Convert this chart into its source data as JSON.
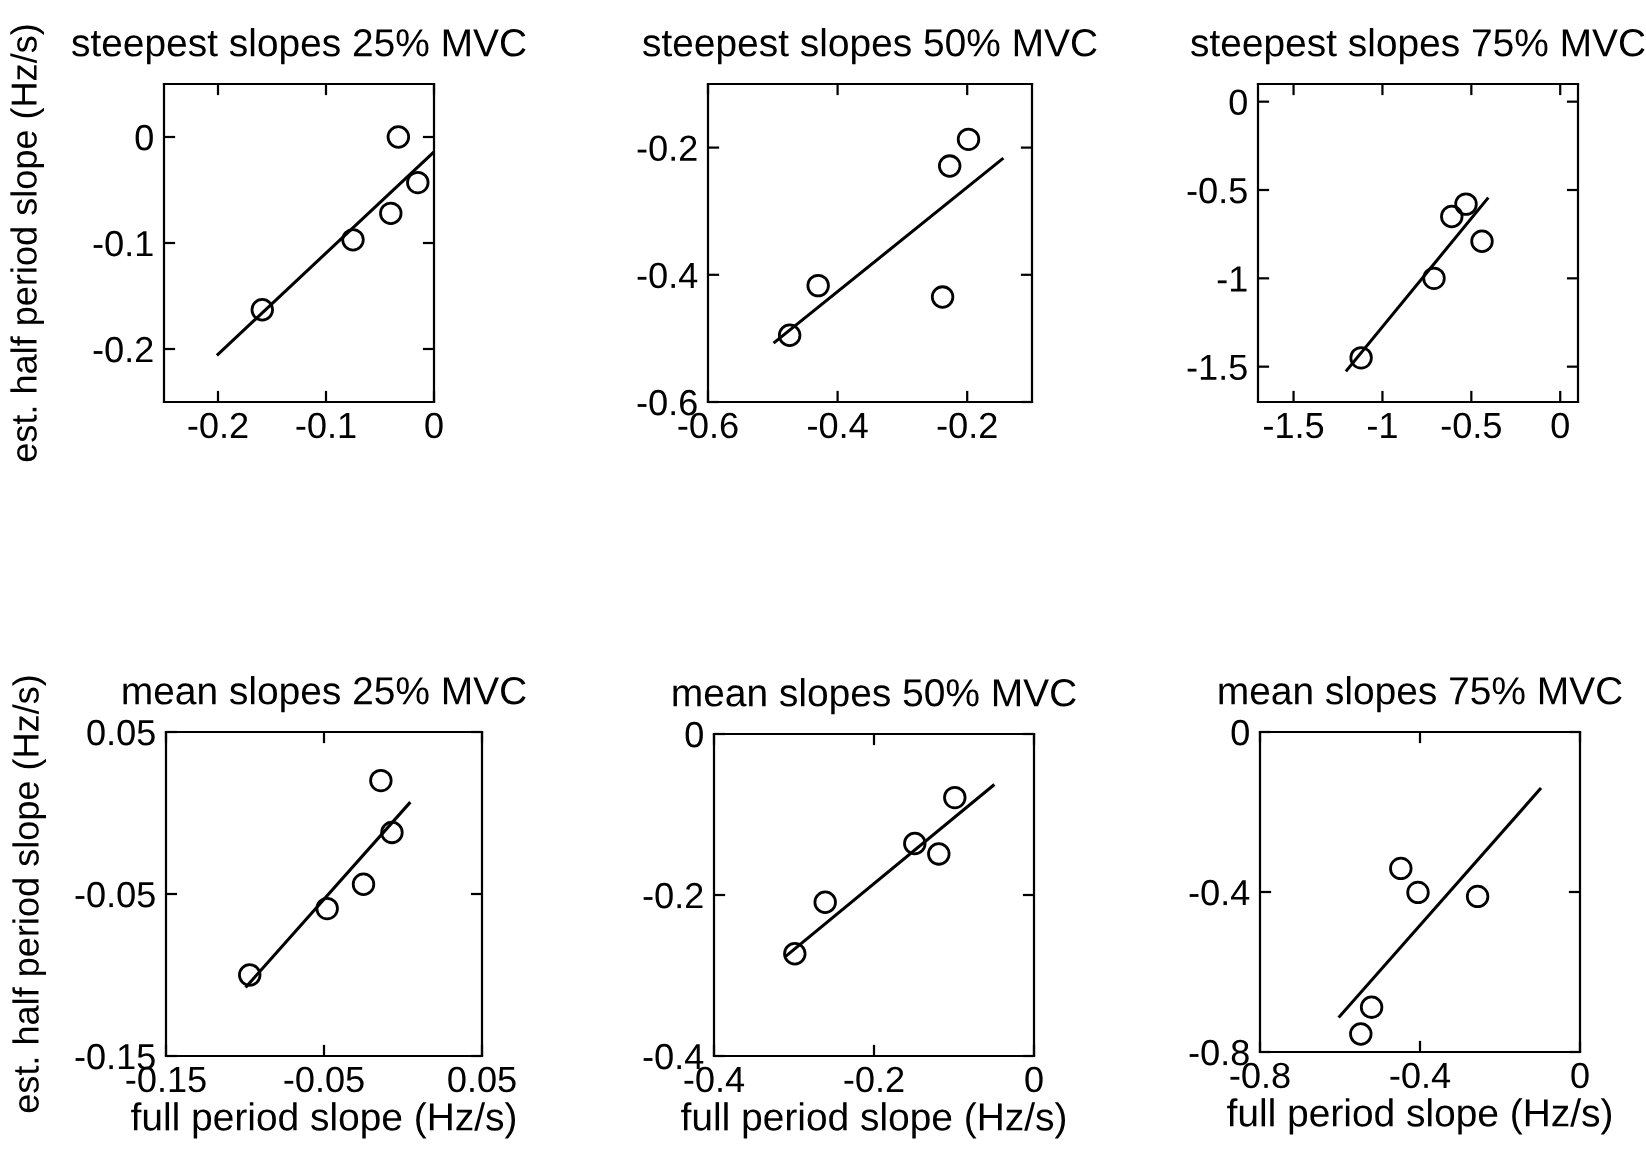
{
  "chart_data": [
    {
      "type": "scatter",
      "title": "steepest slopes 25% MVC",
      "ylabel": "est. half period slope (Hz/s)",
      "xlim": [
        -0.25,
        0
      ],
      "ylim": [
        -0.25,
        0.05
      ],
      "xticks": [
        -0.2,
        -0.1,
        0
      ],
      "yticks": [
        -0.2,
        -0.1,
        0
      ],
      "grid": false,
      "tick_labels": true,
      "series": [
        {
          "marker": "circle",
          "color": "#000000",
          "x": [
            -0.159,
            -0.075,
            -0.04,
            -0.033,
            -0.015
          ],
          "values": [
            -0.163,
            -0.097,
            -0.072,
            0.0,
            -0.043
          ]
        },
        {
          "type": "line",
          "color": "#000000",
          "line_style": "solid",
          "x": [
            -0.2,
            0.0
          ],
          "values": [
            -0.205,
            -0.014
          ]
        }
      ]
    },
    {
      "type": "scatter",
      "title": "steepest slopes 50% MVC",
      "xlim": [
        -0.6,
        -0.1
      ],
      "ylim": [
        -0.6,
        -0.1
      ],
      "xticks": [
        -0.6,
        -0.4,
        -0.2
      ],
      "yticks": [
        -0.6,
        -0.4,
        -0.2
      ],
      "grid": false,
      "series": [
        {
          "marker": "circle",
          "color": "#000000",
          "x": [
            -0.474,
            -0.43,
            -0.227,
            -0.198,
            -0.238
          ],
          "values": [
            -0.495,
            -0.417,
            -0.229,
            -0.187,
            -0.435
          ]
        },
        {
          "type": "line",
          "color": "#000000",
          "line_style": "solid",
          "x": [
            -0.497,
            -0.146
          ],
          "values": [
            -0.506,
            -0.218
          ]
        }
      ]
    },
    {
      "type": "scatter",
      "title": "steepest slopes 75% MVC",
      "xlim": [
        -1.7,
        0.1
      ],
      "ylim": [
        -1.7,
        0.1
      ],
      "xticks": [
        -1.5,
        -1,
        -0.5,
        0
      ],
      "yticks": [
        -1.5,
        -1,
        -0.5,
        0
      ],
      "grid": false,
      "series": [
        {
          "marker": "circle",
          "color": "#000000",
          "x": [
            -1.12,
            -0.71,
            -0.61,
            -0.53,
            -0.44
          ],
          "values": [
            -1.45,
            -1.0,
            -0.65,
            -0.58,
            -0.79
          ]
        },
        {
          "type": "line",
          "color": "#000000",
          "line_style": "solid",
          "x": [
            -1.2,
            -0.41
          ],
          "values": [
            -1.52,
            -0.55
          ]
        }
      ]
    },
    {
      "type": "scatter",
      "title": "mean slopes 25% MVC",
      "xlabel": "full period slope (Hz/s)",
      "ylabel": "est. half period slope (Hz/s)",
      "xlim": [
        -0.15,
        0.05
      ],
      "ylim": [
        -0.15,
        0.05
      ],
      "xticks": [
        -0.15,
        -0.05,
        0.05
      ],
      "yticks": [
        -0.15,
        -0.05,
        0.05
      ],
      "grid": false,
      "series": [
        {
          "marker": "circle",
          "color": "#000000",
          "x": [
            -0.097,
            -0.048,
            -0.025,
            -0.014,
            -0.007
          ],
          "values": [
            -0.1,
            -0.059,
            -0.044,
            0.02,
            -0.012
          ]
        },
        {
          "type": "line",
          "color": "#000000",
          "line_style": "solid",
          "x": [
            -0.099,
            0.004
          ],
          "values": [
            -0.107,
            0.006
          ]
        }
      ]
    },
    {
      "type": "scatter",
      "title": "mean slopes 50% MVC",
      "xlabel": "full period slope (Hz/s)",
      "xlim": [
        -0.4,
        0
      ],
      "ylim": [
        -0.4,
        0
      ],
      "xticks": [
        -0.4,
        -0.2,
        0
      ],
      "yticks": [
        -0.4,
        -0.2,
        0
      ],
      "grid": false,
      "series": [
        {
          "marker": "circle",
          "color": "#000000",
          "x": [
            -0.299,
            -0.261,
            -0.149,
            -0.119,
            -0.099
          ],
          "values": [
            -0.273,
            -0.209,
            -0.136,
            -0.149,
            -0.079
          ]
        },
        {
          "type": "line",
          "color": "#000000",
          "line_style": "solid",
          "x": [
            -0.309,
            -0.051
          ],
          "values": [
            -0.275,
            -0.064
          ]
        }
      ]
    },
    {
      "type": "scatter",
      "title": "mean slopes 75% MVC",
      "xlabel": "full period slope (Hz/s)",
      "xlim": [
        -0.8,
        0
      ],
      "ylim": [
        -0.8,
        0
      ],
      "xticks": [
        -0.8,
        -0.4,
        0
      ],
      "yticks": [
        -0.8,
        -0.4,
        0
      ],
      "grid": false,
      "series": [
        {
          "marker": "circle",
          "color": "#000000",
          "x": [
            -0.548,
            -0.521,
            -0.448,
            -0.405,
            -0.256
          ],
          "values": [
            -0.755,
            -0.688,
            -0.341,
            -0.401,
            -0.411
          ]
        },
        {
          "type": "line",
          "color": "#000000",
          "line_style": "solid",
          "x": [
            -0.601,
            -0.1
          ],
          "values": [
            -0.711,
            -0.143
          ]
        }
      ]
    }
  ]
}
